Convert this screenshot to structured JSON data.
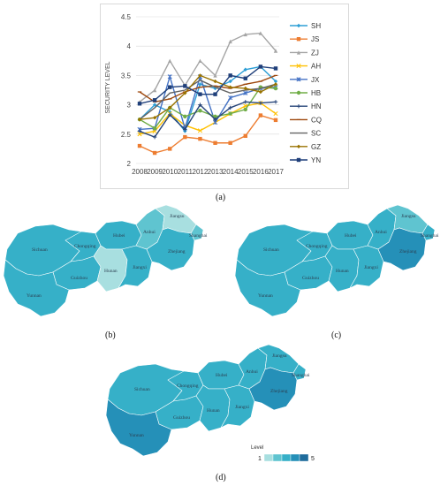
{
  "chart_data": {
    "type": "line",
    "title": "",
    "xlabel": "",
    "ylabel": "SECURITY LEVEL",
    "ylim": [
      2,
      4.5
    ],
    "yticks": [
      "2",
      "2.5",
      "3",
      "3.5",
      "4",
      "4.5"
    ],
    "x": [
      "2008",
      "2009",
      "2010",
      "2011",
      "2012",
      "2013",
      "2014",
      "2015",
      "2016",
      "2017"
    ],
    "grid": true,
    "legend": "right",
    "series": [
      {
        "name": "SH",
        "color": "#2e9fd6",
        "marker": "diamond",
        "values": [
          2.75,
          3.0,
          2.88,
          2.55,
          3.35,
          3.28,
          3.4,
          3.6,
          3.65,
          3.4
        ]
      },
      {
        "name": "JS",
        "color": "#ed7d31",
        "marker": "square",
        "values": [
          2.3,
          2.18,
          2.25,
          2.45,
          2.42,
          2.35,
          2.35,
          2.47,
          2.82,
          2.74
        ]
      },
      {
        "name": "ZJ",
        "color": "#a5a5a5",
        "marker": "triangle",
        "values": [
          3.05,
          3.25,
          3.75,
          3.33,
          3.75,
          3.5,
          4.08,
          4.2,
          4.22,
          3.92
        ]
      },
      {
        "name": "AH",
        "color": "#ffc000",
        "marker": "x",
        "values": [
          2.5,
          2.55,
          2.85,
          2.65,
          2.56,
          2.7,
          2.85,
          2.98,
          3.03,
          2.85
        ]
      },
      {
        "name": "JX",
        "color": "#4472c4",
        "marker": "star",
        "values": [
          2.58,
          2.6,
          3.48,
          2.6,
          3.48,
          2.7,
          3.12,
          3.2,
          3.28,
          3.3
        ]
      },
      {
        "name": "HB",
        "color": "#70ad47",
        "marker": "circle",
        "values": [
          2.75,
          2.6,
          2.95,
          2.8,
          2.9,
          2.8,
          2.85,
          2.92,
          3.3,
          3.28
        ]
      },
      {
        "name": "HN",
        "color": "#264478",
        "marker": "plus",
        "values": [
          2.55,
          2.45,
          2.83,
          2.58,
          3.0,
          2.75,
          2.95,
          3.05,
          3.03,
          3.05
        ]
      },
      {
        "name": "CQ",
        "color": "#9e480e",
        "marker": "dash",
        "values": [
          3.22,
          3.05,
          3.1,
          3.22,
          3.3,
          3.32,
          3.28,
          3.35,
          3.4,
          3.5
        ]
      },
      {
        "name": "SC",
        "color": "#636363",
        "marker": "none",
        "values": [
          2.75,
          2.95,
          3.2,
          3.25,
          3.42,
          3.3,
          3.2,
          3.25,
          3.28,
          3.35
        ]
      },
      {
        "name": "GZ",
        "color": "#997300",
        "marker": "diamond",
        "values": [
          2.75,
          2.78,
          2.95,
          3.2,
          3.5,
          3.4,
          3.3,
          3.28,
          3.22,
          3.35
        ]
      },
      {
        "name": "YN",
        "color": "#1f3f7a",
        "marker": "square",
        "values": [
          3.02,
          3.08,
          3.3,
          3.32,
          3.18,
          3.18,
          3.5,
          3.45,
          3.65,
          3.62
        ]
      }
    ]
  },
  "captions": {
    "a": "(a)",
    "b": "(b)",
    "c": "(c)",
    "d": "(d)"
  },
  "maps": {
    "province_labels": [
      "Sichuan",
      "Chongqing",
      "Guizhou",
      "Yunnan",
      "Hubei",
      "Hunan",
      "Jiangxi",
      "Anhui",
      "Jiangsu",
      "Shanghai",
      "Zhejiang"
    ],
    "level_title": "Level",
    "level_min": "1",
    "level_max": "5",
    "level_colors": [
      "#a8dfe0",
      "#5fc4d0",
      "#36b0c8",
      "#2590b8",
      "#1f6c9c"
    ],
    "levels_b": {
      "Sichuan": 3,
      "Chongqing": 3,
      "Guizhou": 3,
      "Yunnan": 3,
      "Hubei": 3,
      "Hunan": 1,
      "Jiangxi": 3,
      "Anhui": 2,
      "Jiangsu": 1,
      "Shanghai": 2,
      "Zhejiang": 3
    },
    "levels_c": {
      "Sichuan": 3,
      "Chongqing": 3,
      "Guizhou": 3,
      "Yunnan": 3,
      "Hubei": 3,
      "Hunan": 3,
      "Jiangxi": 3,
      "Anhui": 3,
      "Jiangsu": 2,
      "Shanghai": 3,
      "Zhejiang": 4
    },
    "levels_d": {
      "Sichuan": 3,
      "Chongqing": 3,
      "Guizhou": 3,
      "Yunnan": 4,
      "Hubei": 3,
      "Hunan": 3,
      "Jiangxi": 3,
      "Anhui": 3,
      "Jiangsu": 3,
      "Shanghai": 3,
      "Zhejiang": 4
    }
  }
}
